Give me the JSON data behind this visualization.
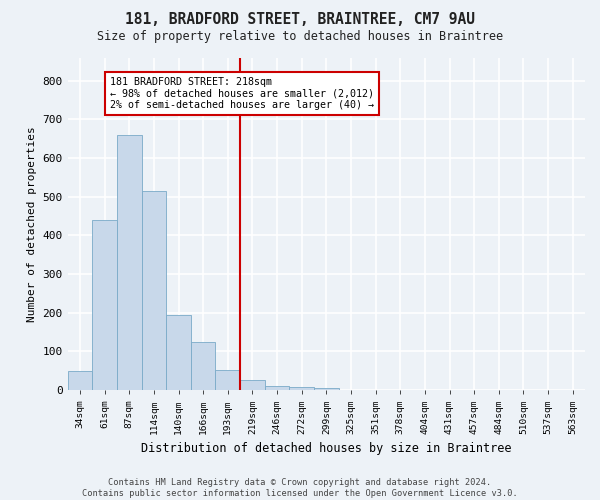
{
  "title": "181, BRADFORD STREET, BRAINTREE, CM7 9AU",
  "subtitle": "Size of property relative to detached houses in Braintree",
  "xlabel": "Distribution of detached houses by size in Braintree",
  "ylabel": "Number of detached properties",
  "bar_labels": [
    "34sqm",
    "61sqm",
    "87sqm",
    "114sqm",
    "140sqm",
    "166sqm",
    "193sqm",
    "219sqm",
    "246sqm",
    "272sqm",
    "299sqm",
    "325sqm",
    "351sqm",
    "378sqm",
    "404sqm",
    "431sqm",
    "457sqm",
    "484sqm",
    "510sqm",
    "537sqm",
    "563sqm"
  ],
  "bar_values": [
    50,
    440,
    660,
    515,
    193,
    125,
    52,
    27,
    10,
    7,
    5,
    0,
    0,
    0,
    0,
    0,
    0,
    0,
    0,
    0,
    0
  ],
  "bar_color": "#c8d8ea",
  "bar_edge_color": "#7aaac8",
  "vline_index": 7,
  "property_line_label": "181 BRADFORD STREET: 218sqm",
  "annotation_line1": "← 98% of detached houses are smaller (2,012)",
  "annotation_line2": "2% of semi-detached houses are larger (40) →",
  "vline_color": "#cc0000",
  "box_edge_color": "#cc0000",
  "ylim": [
    0,
    860
  ],
  "yticks": [
    0,
    100,
    200,
    300,
    400,
    500,
    600,
    700,
    800
  ],
  "background_color": "#edf2f7",
  "grid_color": "#ffffff",
  "footer_line1": "Contains HM Land Registry data © Crown copyright and database right 2024.",
  "footer_line2": "Contains public sector information licensed under the Open Government Licence v3.0."
}
